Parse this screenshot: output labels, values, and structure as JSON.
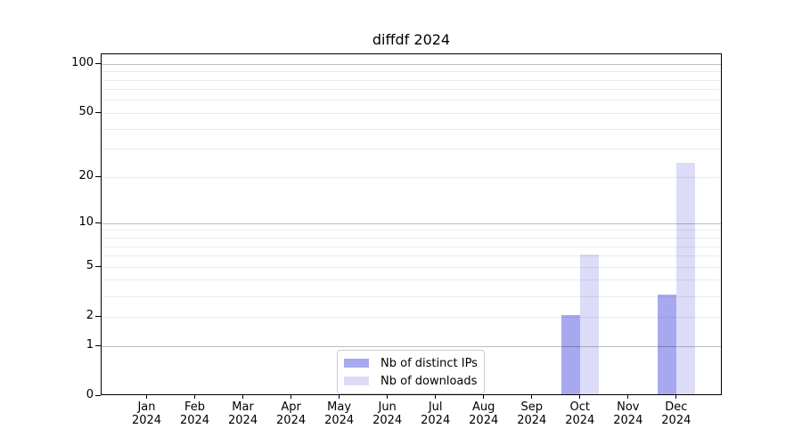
{
  "window": {
    "background": "#ffffff"
  },
  "chart_data": {
    "type": "bar",
    "title": "diffdf 2024",
    "categories": [
      "Jan",
      "Feb",
      "Mar",
      "Apr",
      "May",
      "Jun",
      "Jul",
      "Aug",
      "Sep",
      "Oct",
      "Nov",
      "Dec"
    ],
    "x_tick_year": "2024",
    "series": [
      {
        "name": "Nb of distinct IPs",
        "color": "#a8a8f0",
        "values": [
          0,
          0,
          0,
          0,
          0,
          0,
          0,
          0,
          0,
          2,
          0,
          3
        ]
      },
      {
        "name": "Nb of downloads",
        "color": "#dcdcf8",
        "values": [
          0,
          0,
          0,
          0,
          0,
          0,
          0,
          0,
          0,
          6,
          0,
          24
        ]
      }
    ],
    "xlabel": "",
    "ylabel": "",
    "y_scale": "log1p",
    "y_ticks": [
      0,
      1,
      2,
      5,
      10,
      20,
      50,
      100
    ],
    "y_max": 115,
    "grid_major_values": [
      1,
      10,
      100
    ],
    "grid_minor_values": [
      2,
      3,
      4,
      5,
      6,
      7,
      8,
      9,
      20,
      30,
      40,
      50,
      60,
      70,
      80,
      90
    ],
    "grid": "on",
    "legend_position": "lower center"
  },
  "colors": {
    "axis": "#000000",
    "text": "#000000",
    "legend_border": "#cccccc"
  }
}
